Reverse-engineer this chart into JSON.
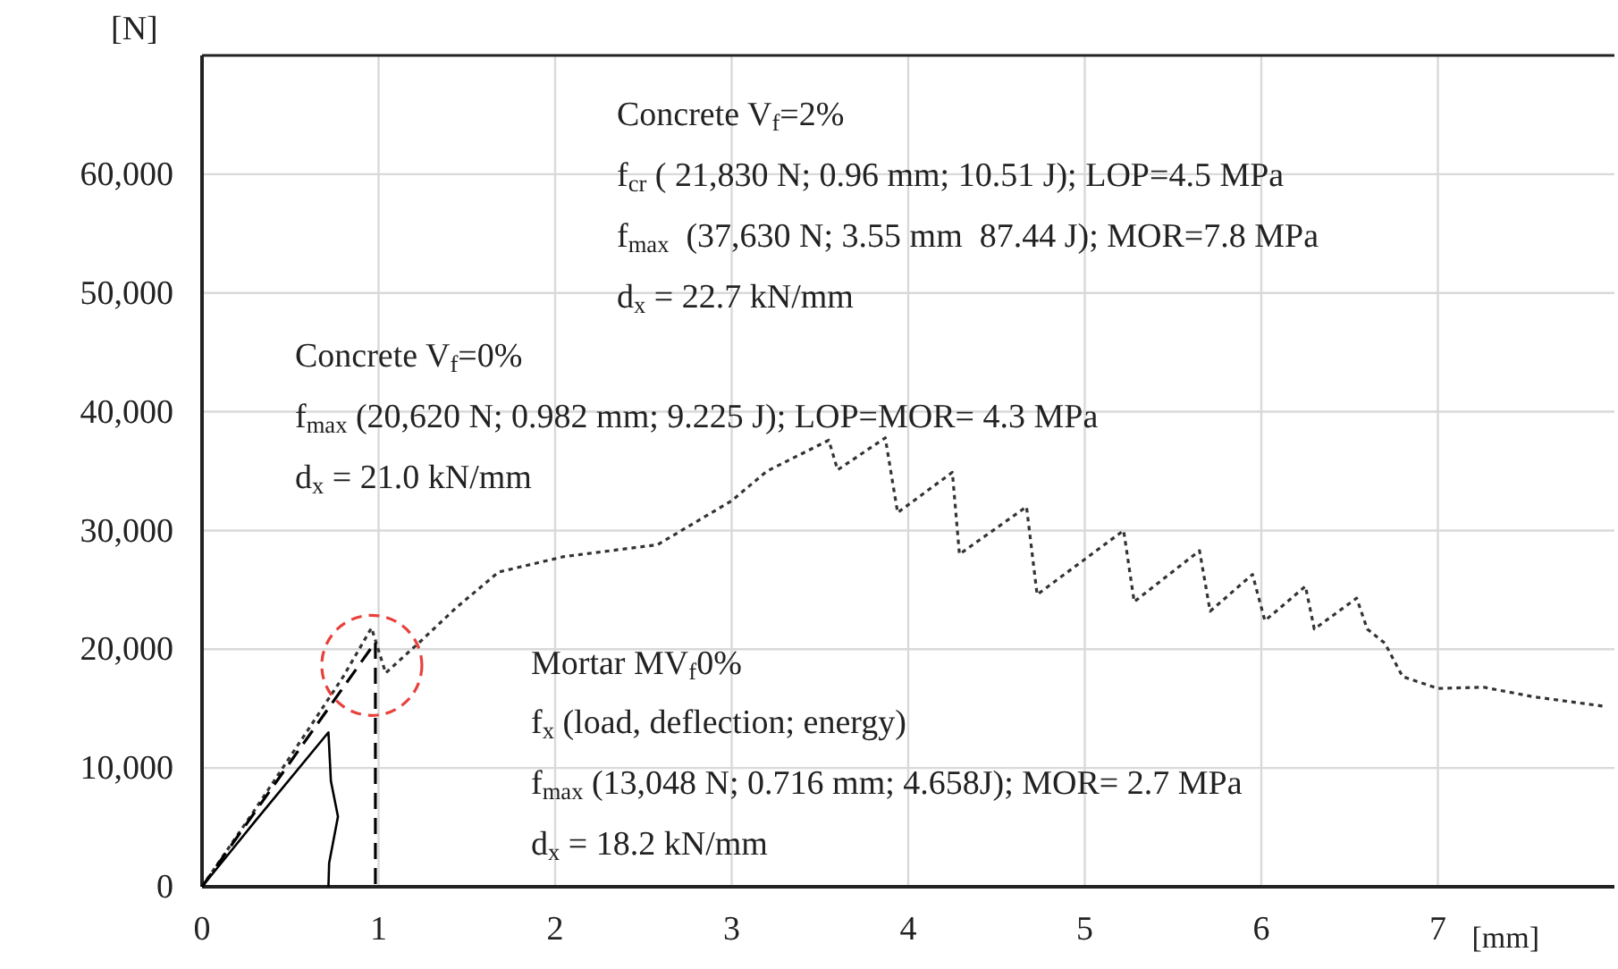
{
  "chart_data": {
    "type": "line",
    "xlabel": "[mm]",
    "ylabel": "[N]",
    "xlim": [
      0,
      8
    ],
    "ylim": [
      0,
      70000
    ],
    "xticks": [
      0,
      1,
      2,
      3,
      4,
      5,
      6,
      7
    ],
    "yticks": [
      0,
      {
        "value": 10000,
        "label": "10,000"
      },
      {
        "value": 20000,
        "label": "20,000"
      },
      {
        "value": 30000,
        "label": "30,000"
      },
      {
        "value": 40000,
        "label": "40,000"
      },
      {
        "value": 50000,
        "label": "50,000"
      },
      {
        "value": 60000,
        "label": "60,000"
      }
    ],
    "grid": true,
    "marker": "none",
    "series": [
      {
        "color": "#333333",
        "line_style": "dotted",
        "x": [
          0,
          0.3,
          0.6,
          0.8,
          0.96,
          1.04,
          1.24,
          1.44,
          1.68,
          2.05,
          2.58,
          3.0,
          3.2,
          3.55,
          3.6,
          3.87,
          3.94,
          4.25,
          4.29,
          4.67,
          4.73,
          5.22,
          5.28,
          5.65,
          5.71,
          5.95,
          6.02,
          6.25,
          6.3,
          6.54,
          6.6,
          6.7,
          6.8,
          7.0,
          7.26,
          7.54,
          7.94
        ],
        "values": [
          0,
          6500,
          13200,
          17700,
          21800,
          18000,
          20700,
          23500,
          26500,
          27800,
          28800,
          32500,
          35000,
          37600,
          35100,
          37800,
          31500,
          34900,
          28000,
          32000,
          24600,
          30000,
          24000,
          28300,
          23200,
          26300,
          22400,
          25300,
          21700,
          24300,
          21700,
          20500,
          17700,
          16700,
          16800,
          16000,
          15200
        ]
      },
      {
        "color": "#000000",
        "line_style": "dashed",
        "x": [
          0,
          0.5,
          0.982,
          0.982
        ],
        "values": [
          0,
          10500,
          20600,
          0
        ]
      },
      {
        "color": "#000000",
        "line_style": "solid",
        "x": [
          0,
          0.3,
          0.716,
          0.73,
          0.77,
          0.72,
          0.716
        ],
        "values": [
          0,
          5500,
          13000,
          8900,
          5900,
          2000,
          0
        ]
      }
    ],
    "annotations": [
      "Concrete V$_{f}$=2%",
      "f$_{cr}$ ( 21,830 N; 0.96 mm; 10.51 J); LOP=4.5 MPa",
      "f$_{max}$  (37,630 N; 3.55 mm  87.44 J); MOR=7.8 MPa",
      "d$_{x}$ = 22.7 kN/mm",
      "Concrete V$_{f}$=0%",
      "f$_{max}$ (20,620 N; 0.982 mm; 9.225 J); LOP=MOR= 4.3 MPa",
      "d$_{x}$ = 21.0 kN/mm",
      "Mortar MV$_{f}$0%",
      "f$_{x}$ (load, deflection; energy)",
      "f$_{max}$ (13,048 N; 0.716 mm; 4.658J); MOR= 2.7 MPa",
      "d$_{x}$ = 18.2 kN/mm"
    ]
  }
}
